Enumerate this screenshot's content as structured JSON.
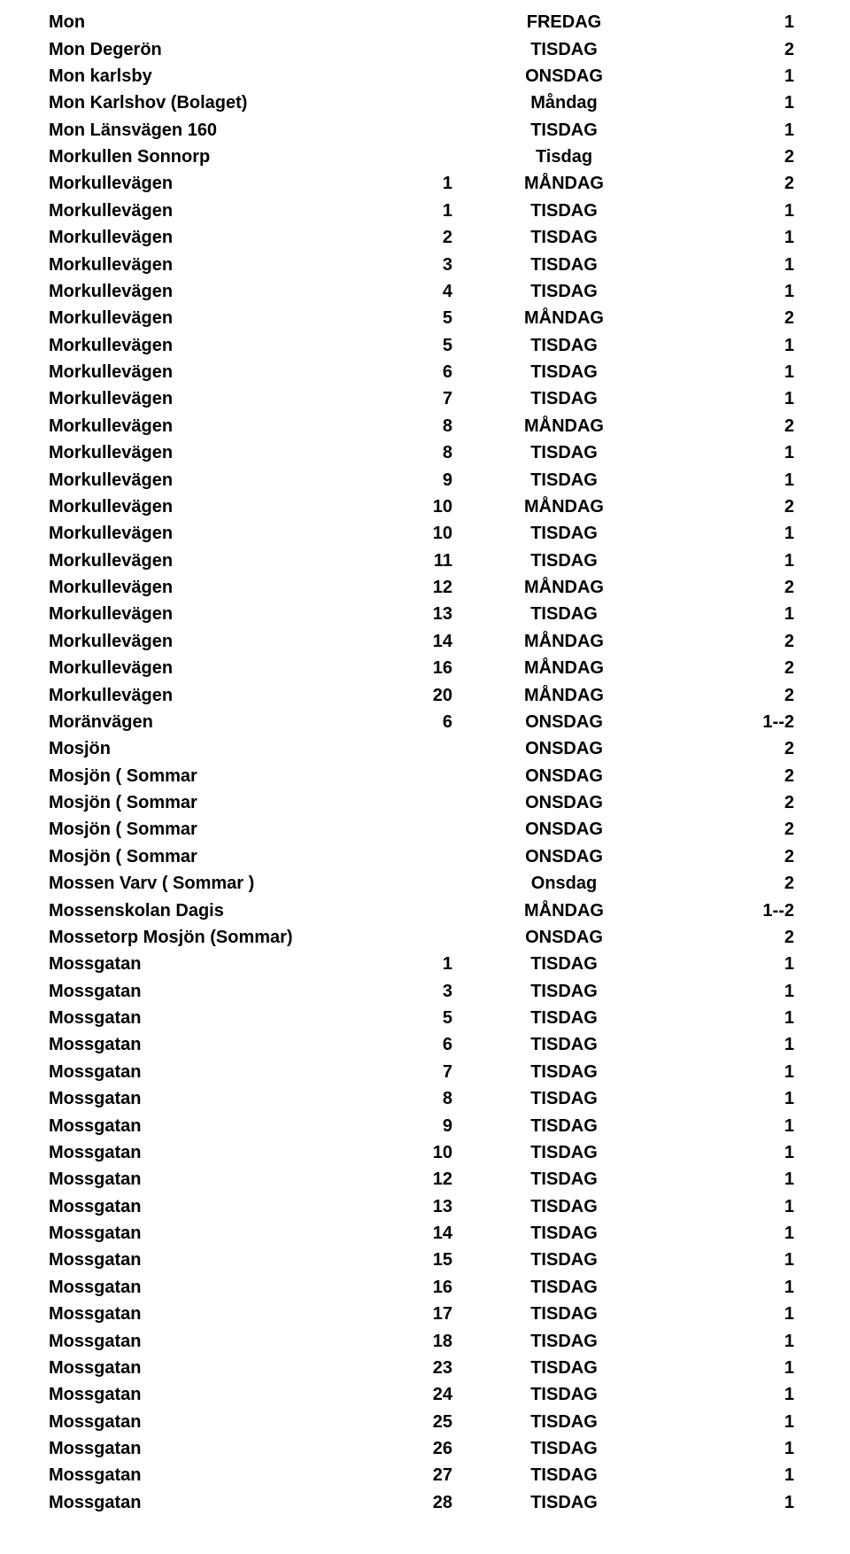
{
  "rows": [
    {
      "name": "Mon",
      "num": "",
      "day": "FREDAG",
      "freq": "1"
    },
    {
      "name": "Mon Degerön",
      "num": "",
      "day": "TISDAG",
      "freq": "2"
    },
    {
      "name": "Mon karlsby",
      "num": "",
      "day": "ONSDAG",
      "freq": "1"
    },
    {
      "name": "Mon Karlshov (Bolaget)",
      "num": "",
      "day": "Måndag",
      "freq": "1"
    },
    {
      "name": "Mon Länsvägen 160",
      "num": "",
      "day": "TISDAG",
      "freq": "1"
    },
    {
      "name": "Morkullen Sonnorp",
      "num": "",
      "day": "Tisdag",
      "freq": "2"
    },
    {
      "name": "Morkullevägen",
      "num": "1",
      "day": "MÅNDAG",
      "freq": "2"
    },
    {
      "name": "Morkullevägen",
      "num": "1",
      "day": "TISDAG",
      "freq": "1"
    },
    {
      "name": "Morkullevägen",
      "num": "2",
      "day": "TISDAG",
      "freq": "1"
    },
    {
      "name": "Morkullevägen",
      "num": "3",
      "day": "TISDAG",
      "freq": "1"
    },
    {
      "name": "Morkullevägen",
      "num": "4",
      "day": "TISDAG",
      "freq": "1"
    },
    {
      "name": "Morkullevägen",
      "num": "5",
      "day": "MÅNDAG",
      "freq": "2"
    },
    {
      "name": "Morkullevägen",
      "num": "5",
      "day": "TISDAG",
      "freq": "1"
    },
    {
      "name": "Morkullevägen",
      "num": "6",
      "day": "TISDAG",
      "freq": "1"
    },
    {
      "name": "Morkullevägen",
      "num": "7",
      "day": "TISDAG",
      "freq": "1"
    },
    {
      "name": "Morkullevägen",
      "num": "8",
      "day": "MÅNDAG",
      "freq": "2"
    },
    {
      "name": "Morkullevägen",
      "num": "8",
      "day": "TISDAG",
      "freq": "1"
    },
    {
      "name": "Morkullevägen",
      "num": "9",
      "day": "TISDAG",
      "freq": "1"
    },
    {
      "name": "Morkullevägen",
      "num": "10",
      "day": "MÅNDAG",
      "freq": "2"
    },
    {
      "name": "Morkullevägen",
      "num": "10",
      "day": "TISDAG",
      "freq": "1"
    },
    {
      "name": "Morkullevägen",
      "num": "11",
      "day": "TISDAG",
      "freq": "1"
    },
    {
      "name": "Morkullevägen",
      "num": "12",
      "day": "MÅNDAG",
      "freq": "2"
    },
    {
      "name": "Morkullevägen",
      "num": "13",
      "day": "TISDAG",
      "freq": "1"
    },
    {
      "name": "Morkullevägen",
      "num": "14",
      "day": "MÅNDAG",
      "freq": "2"
    },
    {
      "name": "Morkullevägen",
      "num": "16",
      "day": "MÅNDAG",
      "freq": "2"
    },
    {
      "name": "Morkullevägen",
      "num": "20",
      "day": "MÅNDAG",
      "freq": "2"
    },
    {
      "name": "Moränvägen",
      "num": "6",
      "day": "ONSDAG",
      "freq": "1--2"
    },
    {
      "name": "Mosjön",
      "num": "",
      "day": "ONSDAG",
      "freq": "2"
    },
    {
      "name": "Mosjön ( Sommar",
      "num": "",
      "day": "ONSDAG",
      "freq": "2"
    },
    {
      "name": "Mosjön ( Sommar",
      "num": "",
      "day": "ONSDAG",
      "freq": "2"
    },
    {
      "name": "Mosjön ( Sommar",
      "num": "",
      "day": "ONSDAG",
      "freq": "2"
    },
    {
      "name": "Mosjön ( Sommar",
      "num": "",
      "day": "ONSDAG",
      "freq": "2"
    },
    {
      "name": "Mossen Varv ( Sommar )",
      "num": "",
      "day": "Onsdag",
      "freq": "2"
    },
    {
      "name": "Mossenskolan Dagis",
      "num": "",
      "day": "MÅNDAG",
      "freq": "1--2"
    },
    {
      "name": "Mossetorp Mosjön (Sommar)",
      "num": "",
      "day": "ONSDAG",
      "freq": "2"
    },
    {
      "name": "Mossgatan",
      "num": "1",
      "day": "TISDAG",
      "freq": "1"
    },
    {
      "name": "Mossgatan",
      "num": "3",
      "day": "TISDAG",
      "freq": "1"
    },
    {
      "name": "Mossgatan",
      "num": "5",
      "day": "TISDAG",
      "freq": "1"
    },
    {
      "name": "Mossgatan",
      "num": "6",
      "day": "TISDAG",
      "freq": "1"
    },
    {
      "name": "Mossgatan",
      "num": "7",
      "day": "TISDAG",
      "freq": "1"
    },
    {
      "name": "Mossgatan",
      "num": "8",
      "day": "TISDAG",
      "freq": "1"
    },
    {
      "name": "Mossgatan",
      "num": "9",
      "day": "TISDAG",
      "freq": "1"
    },
    {
      "name": "Mossgatan",
      "num": "10",
      "day": "TISDAG",
      "freq": "1"
    },
    {
      "name": "Mossgatan",
      "num": "12",
      "day": "TISDAG",
      "freq": "1"
    },
    {
      "name": "Mossgatan",
      "num": "13",
      "day": "TISDAG",
      "freq": "1"
    },
    {
      "name": "Mossgatan",
      "num": "14",
      "day": "TISDAG",
      "freq": "1"
    },
    {
      "name": "Mossgatan",
      "num": "15",
      "day": "TISDAG",
      "freq": "1"
    },
    {
      "name": "Mossgatan",
      "num": "16",
      "day": "TISDAG",
      "freq": "1"
    },
    {
      "name": "Mossgatan",
      "num": "17",
      "day": "TISDAG",
      "freq": "1"
    },
    {
      "name": "Mossgatan",
      "num": "18",
      "day": "TISDAG",
      "freq": "1"
    },
    {
      "name": "Mossgatan",
      "num": "23",
      "day": "TISDAG",
      "freq": "1"
    },
    {
      "name": "Mossgatan",
      "num": "24",
      "day": "TISDAG",
      "freq": "1"
    },
    {
      "name": "Mossgatan",
      "num": "25",
      "day": "TISDAG",
      "freq": "1"
    },
    {
      "name": "Mossgatan",
      "num": "26",
      "day": "TISDAG",
      "freq": "1"
    },
    {
      "name": "Mossgatan",
      "num": "27",
      "day": "TISDAG",
      "freq": "1"
    },
    {
      "name": "Mossgatan",
      "num": "28",
      "day": "TISDAG",
      "freq": "1"
    }
  ]
}
